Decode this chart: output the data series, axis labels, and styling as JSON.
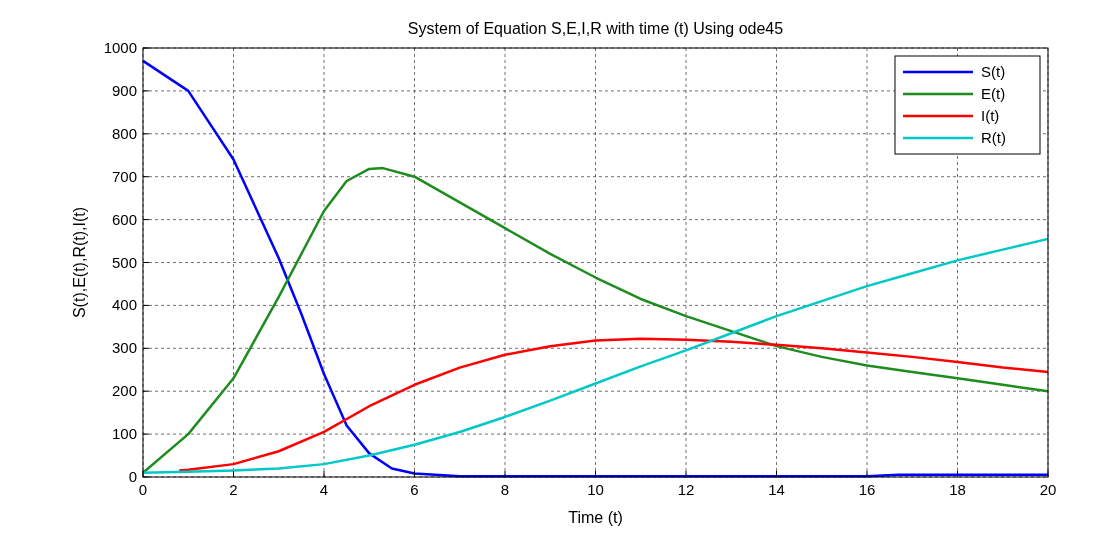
{
  "chart_data": {
    "type": "line",
    "title": "System of Equation S,E,I,R with time (t) Using ode45",
    "xlabel": "Time (t)",
    "ylabel": "S(t),E(t),R(t),I(t)",
    "xlim": [
      0,
      20
    ],
    "xticks": [
      0,
      2,
      4,
      6,
      8,
      10,
      12,
      14,
      16,
      18,
      20
    ],
    "ylim": [
      0,
      1000
    ],
    "yticks": [
      0,
      100,
      200,
      300,
      400,
      500,
      600,
      700,
      800,
      900,
      1000
    ],
    "grid": true,
    "legend": "top right",
    "line_style": "solid",
    "series": [
      {
        "name": "S(t)",
        "color": "#0000ff",
        "x": [
          0,
          1,
          2,
          3,
          3.5,
          4,
          4.5,
          5,
          5.5,
          6,
          7,
          8,
          10,
          12,
          14,
          16,
          16.7,
          18,
          20
        ],
        "values": [
          970,
          900,
          740,
          510,
          380,
          240,
          120,
          55,
          20,
          8,
          2,
          2,
          2,
          2,
          2,
          2,
          5,
          5,
          5
        ]
      },
      {
        "name": "E(t)",
        "color": "#1f8c1f",
        "x": [
          0,
          1,
          2,
          3,
          4,
          4.5,
          5,
          5.3,
          6,
          7,
          8,
          9,
          10,
          11,
          12,
          13,
          14,
          15,
          16,
          17,
          18,
          19,
          20
        ],
        "values": [
          10,
          100,
          230,
          420,
          620,
          690,
          718,
          720,
          700,
          640,
          580,
          520,
          465,
          415,
          375,
          340,
          305,
          280,
          260,
          245,
          230,
          215,
          200
        ]
      },
      {
        "name": "I(t)",
        "color": "#ff0000",
        "x": [
          0.8,
          1,
          2,
          3,
          4,
          5,
          6,
          7,
          8,
          9,
          10,
          11,
          12,
          13,
          14,
          15,
          16,
          17,
          18,
          19,
          20
        ],
        "values": [
          15,
          17,
          30,
          60,
          105,
          165,
          215,
          255,
          285,
          305,
          318,
          322,
          320,
          315,
          308,
          300,
          290,
          280,
          268,
          255,
          245
        ]
      },
      {
        "name": "R(t)",
        "color": "#00c8c8",
        "x": [
          0,
          1,
          2,
          3,
          4,
          5,
          6,
          7,
          8,
          9,
          10,
          11,
          12,
          13,
          14,
          15,
          16,
          17,
          18,
          19,
          20
        ],
        "values": [
          10,
          12,
          15,
          20,
          30,
          50,
          75,
          105,
          140,
          178,
          218,
          258,
          295,
          335,
          375,
          410,
          445,
          475,
          505,
          530,
          555
        ]
      }
    ]
  }
}
